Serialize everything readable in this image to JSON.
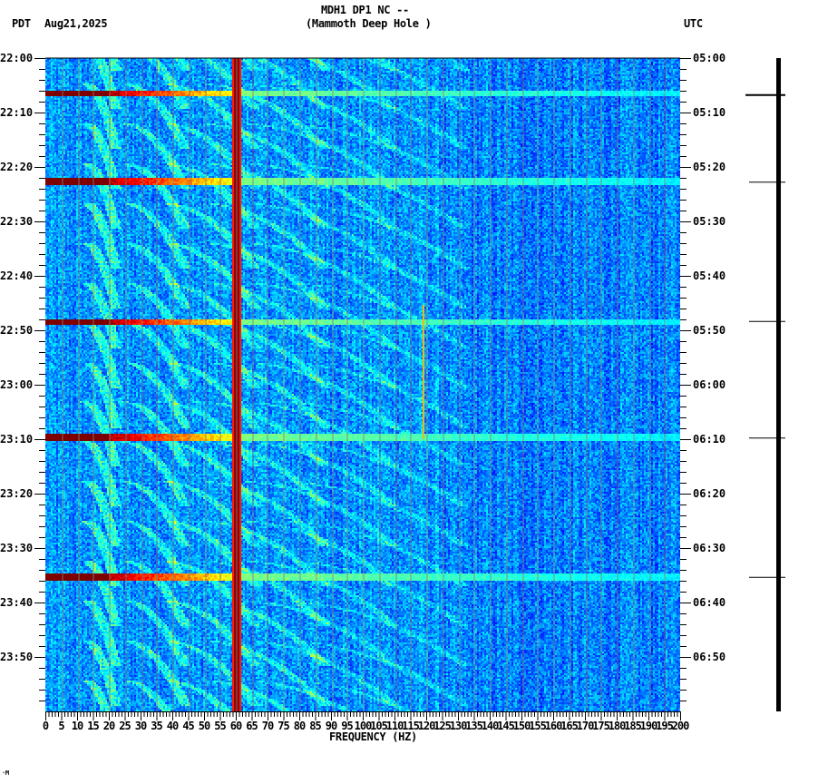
{
  "header": {
    "station": "MDH1 DP1 NC --",
    "location": "(Mammoth Deep Hole )",
    "left_tz": "PDT",
    "date": "Aug21,2025",
    "right_tz": "UTC"
  },
  "footer_mark": "·M",
  "chart_data": {
    "type": "heatmap",
    "title": "MDH1 DP1 NC -- (Mammoth Deep Hole )",
    "xlabel": "FREQUENCY (HZ)",
    "ylabel_left": "PDT",
    "ylabel_right": "UTC",
    "xlim": [
      0,
      200
    ],
    "x_ticks": [
      0,
      5,
      10,
      15,
      20,
      25,
      30,
      35,
      40,
      45,
      50,
      55,
      60,
      65,
      70,
      75,
      80,
      85,
      90,
      95,
      100,
      105,
      110,
      115,
      120,
      125,
      130,
      135,
      140,
      145,
      150,
      155,
      160,
      165,
      170,
      175,
      180,
      185,
      190,
      195,
      200
    ],
    "y_ticks_left": [
      "22:00",
      "22:10",
      "22:20",
      "22:30",
      "22:40",
      "22:50",
      "23:00",
      "23:10",
      "23:20",
      "23:30",
      "23:40",
      "23:50"
    ],
    "y_ticks_right": [
      "05:00",
      "05:10",
      "05:20",
      "05:30",
      "05:40",
      "05:50",
      "06:00",
      "06:10",
      "06:20",
      "06:30",
      "06:40",
      "06:50"
    ],
    "time_span_minutes": 120,
    "colormap": [
      "#00007f",
      "#0000ff",
      "#007fff",
      "#00ffff",
      "#7fff7f",
      "#ffff00",
      "#ff7f00",
      "#ff0000",
      "#7f0000"
    ],
    "persistent_lines_hz": [
      {
        "freq": 60,
        "level": "high"
      },
      {
        "freq": 119,
        "level": "low"
      }
    ],
    "grid_lines_every_hz": 5,
    "broadband_events_minutes": [
      6.3,
      22.5,
      48.3,
      69.5,
      95.2
    ],
    "arc_features": "repeating curved harmonic arcs (glides) 20-150 Hz, recurring every ~6-8 min",
    "event_markers_minutes": [
      6.7,
      22.7,
      48.3,
      69.7,
      95.3
    ]
  }
}
